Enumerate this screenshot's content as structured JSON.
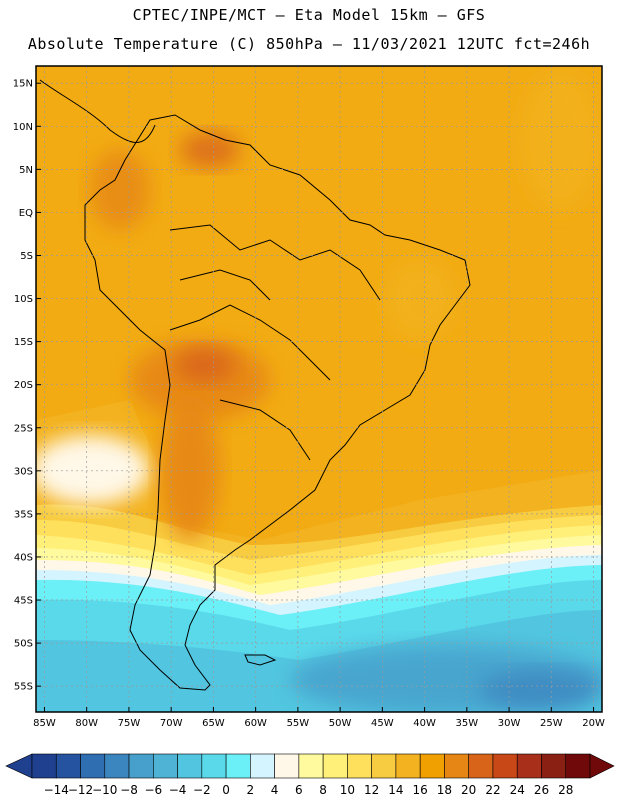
{
  "header": {
    "line1": "CPTEC/INPE/MCT –  Eta Model 15km – GFS",
    "line2": "Absolute Temperature (C) 850hPa – 11/03/2021 12UTC fct=246h"
  },
  "map": {
    "lat_labels": [
      "15N",
      "10N",
      "5N",
      "EQ",
      "5S",
      "10S",
      "15S",
      "20S",
      "25S",
      "30S",
      "35S",
      "40S",
      "45S",
      "50S",
      "55S"
    ],
    "lat_values": [
      15,
      10,
      5,
      0,
      -5,
      -10,
      -15,
      -20,
      -25,
      -30,
      -35,
      -40,
      -45,
      -50,
      -55
    ],
    "lon_labels": [
      "85W",
      "80W",
      "75W",
      "70W",
      "65W",
      "60W",
      "55W",
      "50W",
      "45W",
      "40W",
      "35W",
      "30W",
      "25W",
      "20W"
    ],
    "lon_values": [
      -85,
      -80,
      -75,
      -70,
      -65,
      -60,
      -55,
      -50,
      -45,
      -40,
      -35,
      -30,
      -25,
      -20
    ],
    "lat_range": [
      -58,
      17
    ],
    "lon_range": [
      -86,
      -19
    ]
  },
  "colorbar": {
    "labels": [
      "-14",
      "-12",
      "-10",
      "-8",
      "-6",
      "-4",
      "-2",
      "0",
      "2",
      "4",
      "6",
      "8",
      "10",
      "12",
      "14",
      "16",
      "18",
      "20",
      "22",
      "24",
      "26",
      "28"
    ],
    "colors": [
      "#1f3f8f",
      "#2553a0",
      "#2f6eb0",
      "#3c86c0",
      "#47a0cc",
      "#4fb3d6",
      "#52c6e0",
      "#5ad9ea",
      "#6cf0f7",
      "#d4f4ff",
      "#fff8e8",
      "#fffa9e",
      "#fff07a",
      "#ffe05c",
      "#f8cc40",
      "#f3b21f",
      "#f0a000",
      "#e68614",
      "#d8641a",
      "#c84818",
      "#a8301a",
      "#8a2014",
      "#700a0a"
    ]
  }
}
